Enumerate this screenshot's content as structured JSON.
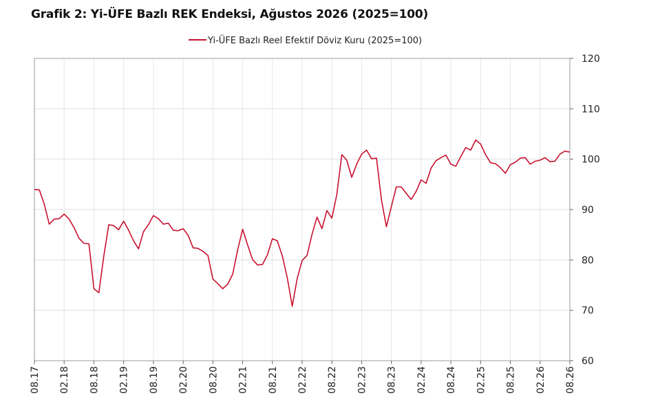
{
  "chart_data": {
    "type": "line",
    "title": "Grafik 2: Yi-ÜFE Bazlı REK Endeksi, Ağustos 2026 (2025=100)",
    "legend": {
      "placement": "top-center"
    },
    "y_axis": {
      "position": "right",
      "range": [
        60,
        120
      ],
      "ticks": [
        60,
        70,
        80,
        90,
        100,
        110,
        120
      ],
      "grid": true
    },
    "x_axis": {
      "range": [
        "2017-08",
        "2026-08"
      ],
      "tick_labels": [
        "08.17",
        "02.18",
        "08.18",
        "02.19",
        "08.19",
        "02.20",
        "08.20",
        "02.21",
        "08.21",
        "02.22",
        "08.22",
        "02.23",
        "08.23",
        "02.24",
        "08.24",
        "02.25",
        "08.25",
        "02.26",
        "08.26"
      ],
      "grid": true
    },
    "series": [
      {
        "name": "Yi-ÜFE Bazlı Reel Efektif Döviz Kuru (2025=100)",
        "color": "#c8102e",
        "x": [
          "2017-08",
          "2017-09",
          "2017-10",
          "2017-11",
          "2017-12",
          "2018-01",
          "2018-02",
          "2018-03",
          "2018-04",
          "2018-05",
          "2018-06",
          "2018-07",
          "2018-08",
          "2018-09",
          "2018-10",
          "2018-11",
          "2018-12",
          "2019-01",
          "2019-02",
          "2019-03",
          "2019-04",
          "2019-05",
          "2019-06",
          "2019-07",
          "2019-08",
          "2019-09",
          "2019-10",
          "2019-11",
          "2019-12",
          "2020-01",
          "2020-02",
          "2020-03",
          "2020-04",
          "2020-05",
          "2020-06",
          "2020-07",
          "2020-08",
          "2020-09",
          "2020-10",
          "2020-11",
          "2020-12",
          "2021-01",
          "2021-02",
          "2021-03",
          "2021-04",
          "2021-05",
          "2021-06",
          "2021-07",
          "2021-08",
          "2021-09",
          "2021-10",
          "2021-11",
          "2021-12",
          "2022-01",
          "2022-02",
          "2022-03",
          "2022-04",
          "2022-05",
          "2022-06",
          "2022-07",
          "2022-08",
          "2022-09",
          "2022-10",
          "2022-11",
          "2022-12",
          "2023-01",
          "2023-02",
          "2023-03",
          "2023-04",
          "2023-05",
          "2023-06",
          "2023-07",
          "2023-08",
          "2023-09",
          "2023-10",
          "2023-11",
          "2023-12",
          "2024-01",
          "2024-02",
          "2024-03",
          "2024-04",
          "2024-05",
          "2024-06",
          "2024-07",
          "2024-08",
          "2024-09",
          "2024-10",
          "2024-11",
          "2024-12",
          "2025-01",
          "2025-02",
          "2025-03",
          "2025-04",
          "2025-05",
          "2025-06",
          "2025-07",
          "2025-08",
          "2025-09",
          "2025-10",
          "2025-11",
          "2025-12",
          "2026-01",
          "2026-02",
          "2026-03",
          "2026-04",
          "2026-05",
          "2026-06",
          "2026-07",
          "2026-08"
        ],
        "y": [
          94.0,
          93.9,
          91.0,
          87.1,
          88.1,
          88.2,
          89.1,
          88.1,
          86.4,
          84.3,
          83.3,
          83.2,
          74.3,
          73.5,
          80.8,
          87.0,
          86.8,
          86.0,
          87.7,
          85.9,
          83.8,
          82.2,
          85.6,
          87.0,
          88.8,
          88.2,
          87.1,
          87.3,
          85.9,
          85.8,
          86.2,
          84.9,
          82.4,
          82.3,
          81.7,
          80.9,
          76.2,
          75.3,
          74.3,
          75.2,
          77.2,
          82.0,
          86.1,
          83.0,
          80.1,
          79.0,
          79.1,
          81.0,
          84.2,
          83.8,
          80.8,
          76.5,
          70.8,
          76.3,
          79.9,
          80.9,
          85.1,
          88.5,
          86.2,
          89.8,
          88.3,
          93.0,
          100.9,
          99.8,
          96.4,
          99.0,
          101.0,
          101.8,
          100.1,
          100.2,
          91.9,
          86.6,
          90.6,
          94.5,
          94.5,
          93.2,
          92.0,
          93.6,
          95.9,
          95.2,
          98.2,
          99.7,
          100.3,
          100.8,
          99.0,
          98.6,
          100.5,
          102.3,
          101.8,
          103.8,
          103.0,
          100.9,
          99.3,
          99.1,
          98.3,
          97.2,
          98.9,
          99.4,
          100.2,
          100.3,
          99.0,
          99.6,
          99.8,
          100.3,
          99.5,
          99.6,
          101.0,
          101.6,
          101.4
        ]
      }
    ]
  }
}
